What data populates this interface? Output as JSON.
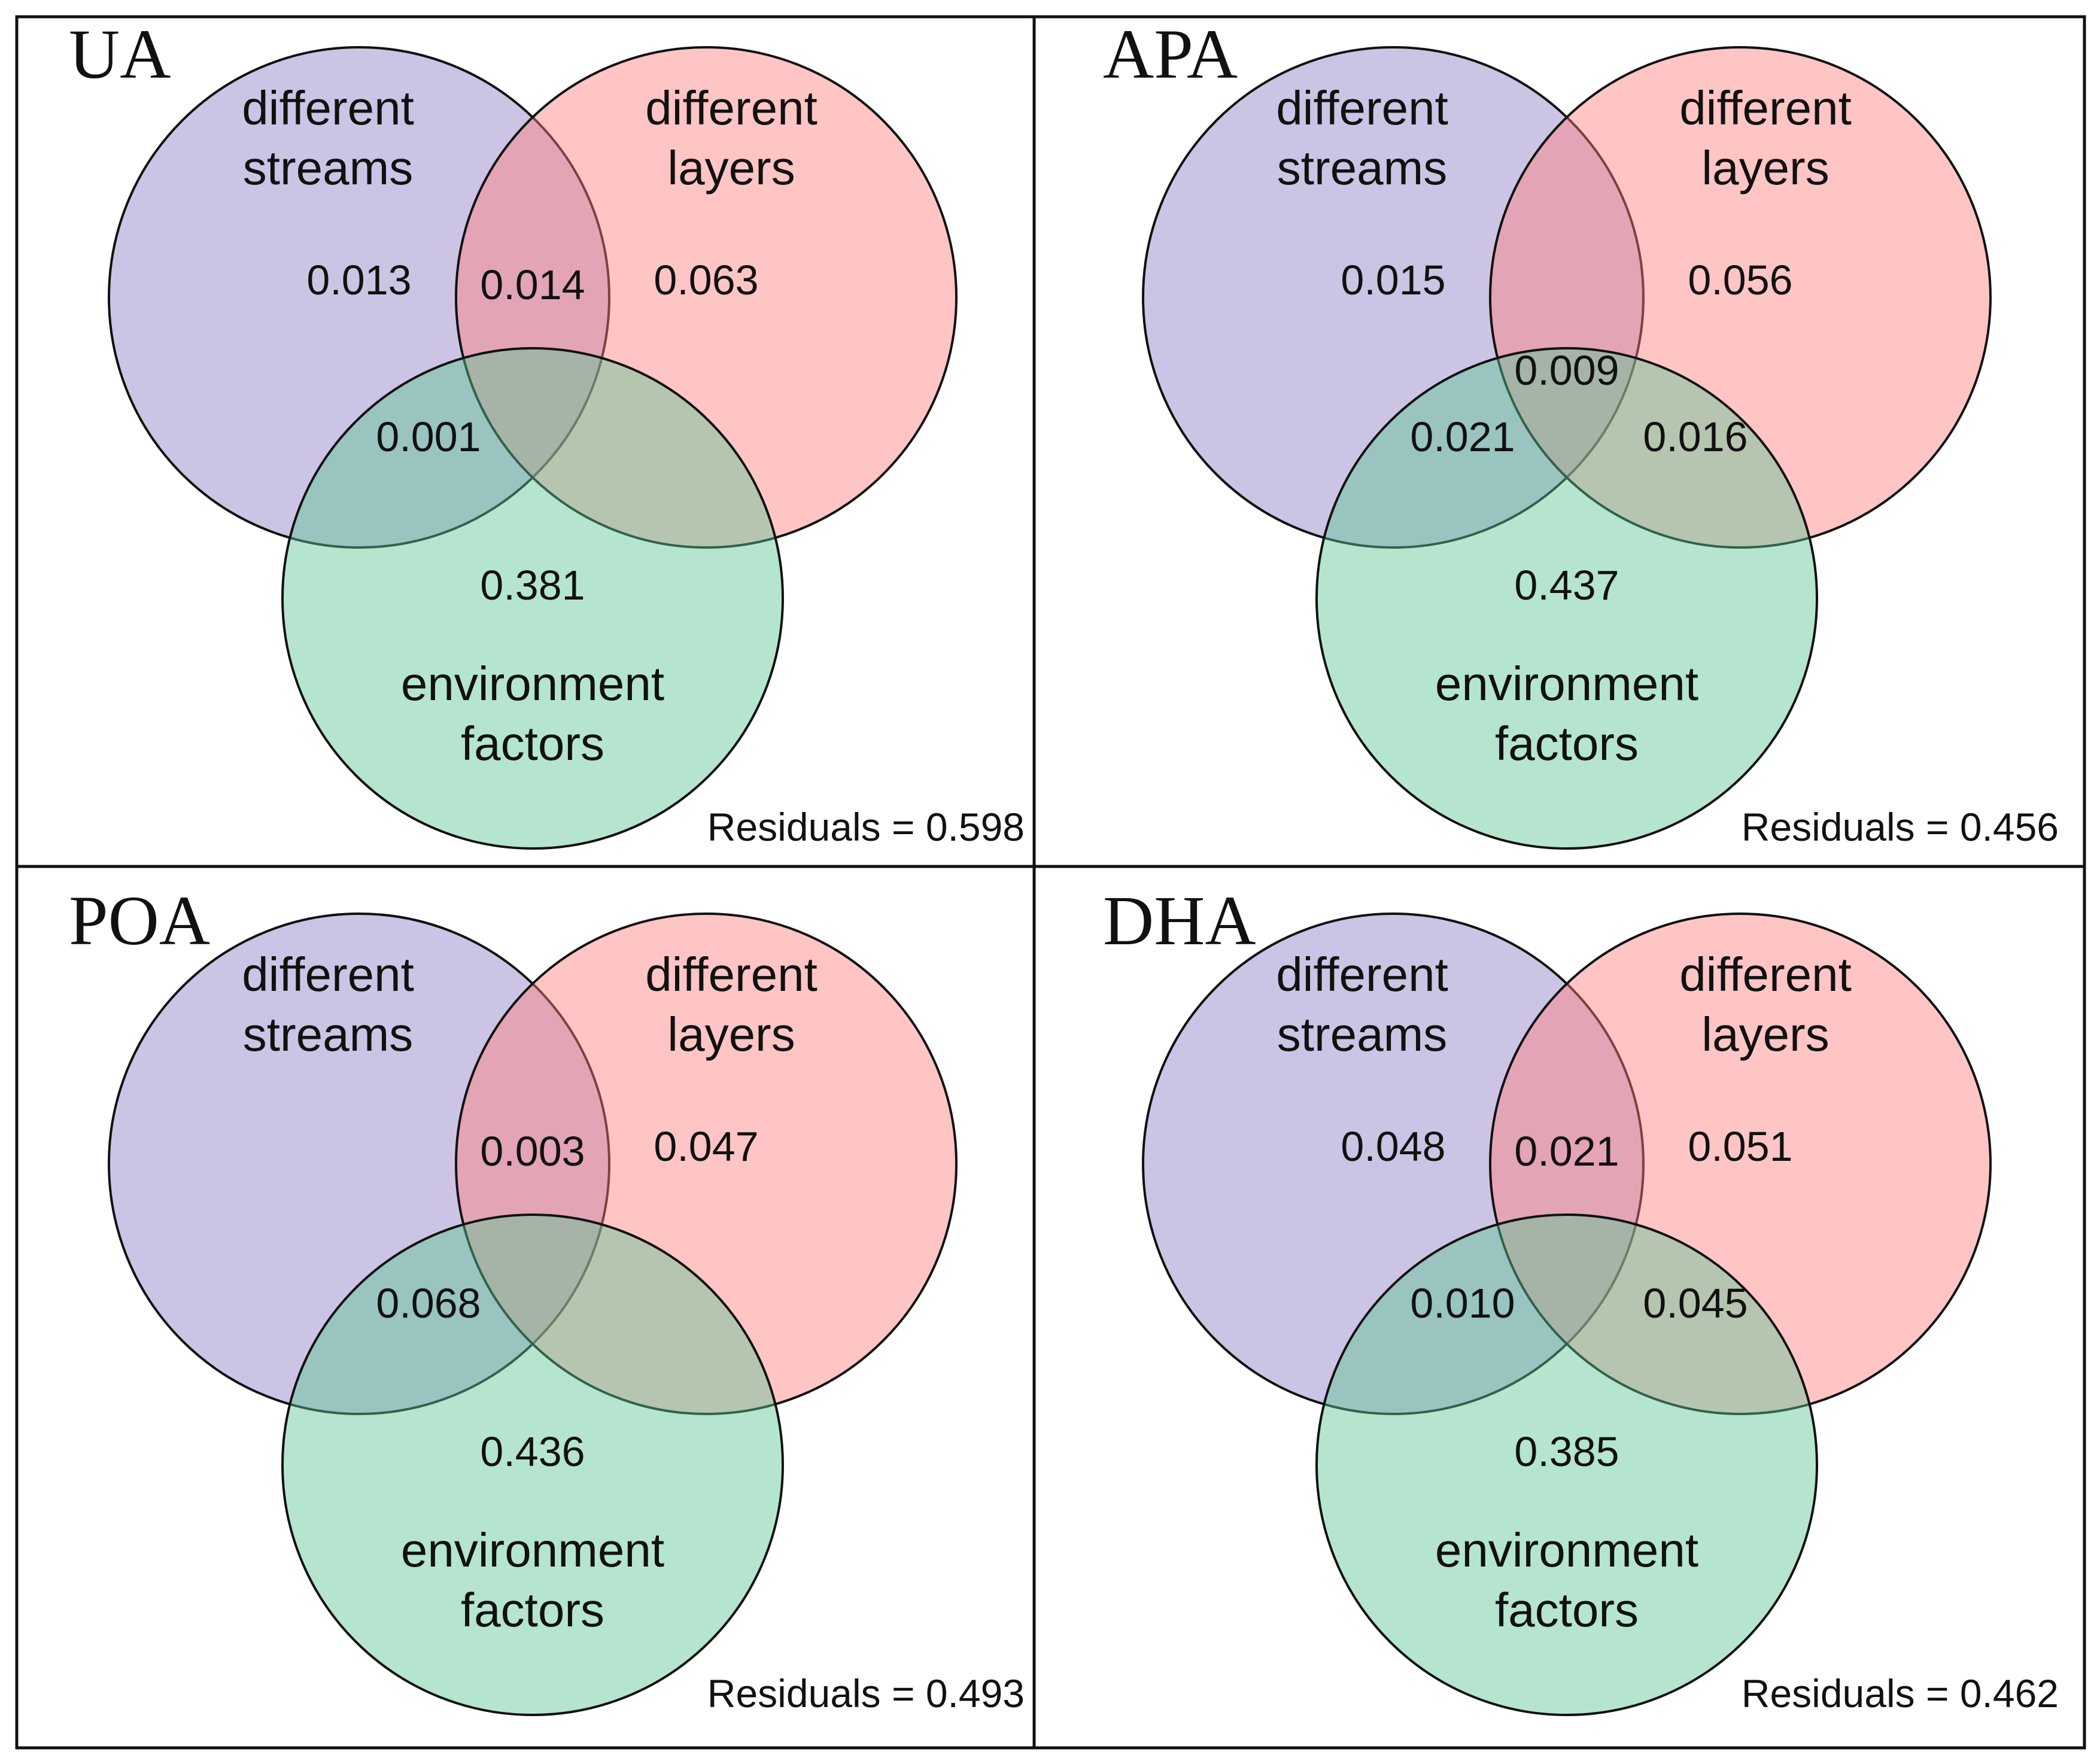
{
  "colors": {
    "streams": "#8e7cc3",
    "layers": "#ff7f7f",
    "environment": "#5cc695"
  },
  "panels": [
    {
      "title": "UA",
      "streams_label": [
        "different",
        "streams"
      ],
      "layers_label": [
        "different",
        "layers"
      ],
      "environment_label": [
        "environment",
        "factors"
      ],
      "values": {
        "streams_only": "0.013",
        "streams_layers": "0.014",
        "layers_only": "0.063",
        "streams_environment": "0.001",
        "all_three": "",
        "layers_environment": "",
        "environment_only": "0.381"
      },
      "residuals": "Residuals = 0.598"
    },
    {
      "title": "APA",
      "streams_label": [
        "different",
        "streams"
      ],
      "layers_label": [
        "different",
        "layers"
      ],
      "environment_label": [
        "environment",
        "factors"
      ],
      "values": {
        "streams_only": "0.015",
        "streams_layers": "",
        "layers_only": "0.056",
        "streams_environment": "0.021",
        "all_three": "0.009",
        "layers_environment": "0.016",
        "environment_only": "0.437"
      },
      "residuals": "Residuals = 0.456"
    },
    {
      "title": "POA",
      "streams_label": [
        "different",
        "streams"
      ],
      "layers_label": [
        "different",
        "layers"
      ],
      "environment_label": [
        "environment",
        "factors"
      ],
      "values": {
        "streams_only": "",
        "streams_layers": "0.003",
        "layers_only": "0.047",
        "streams_environment": "0.068",
        "all_three": "",
        "layers_environment": "",
        "environment_only": "0.436"
      },
      "residuals": "Residuals = 0.493"
    },
    {
      "title": "DHA",
      "streams_label": [
        "different",
        "streams"
      ],
      "layers_label": [
        "different",
        "layers"
      ],
      "environment_label": [
        "environment",
        "factors"
      ],
      "values": {
        "streams_only": "0.048",
        "streams_layers": "0.021",
        "layers_only": "0.051",
        "streams_environment": "0.010",
        "all_three": "",
        "layers_environment": "0.045",
        "environment_only": "0.385"
      },
      "residuals": "Residuals = 0.462"
    }
  ]
}
